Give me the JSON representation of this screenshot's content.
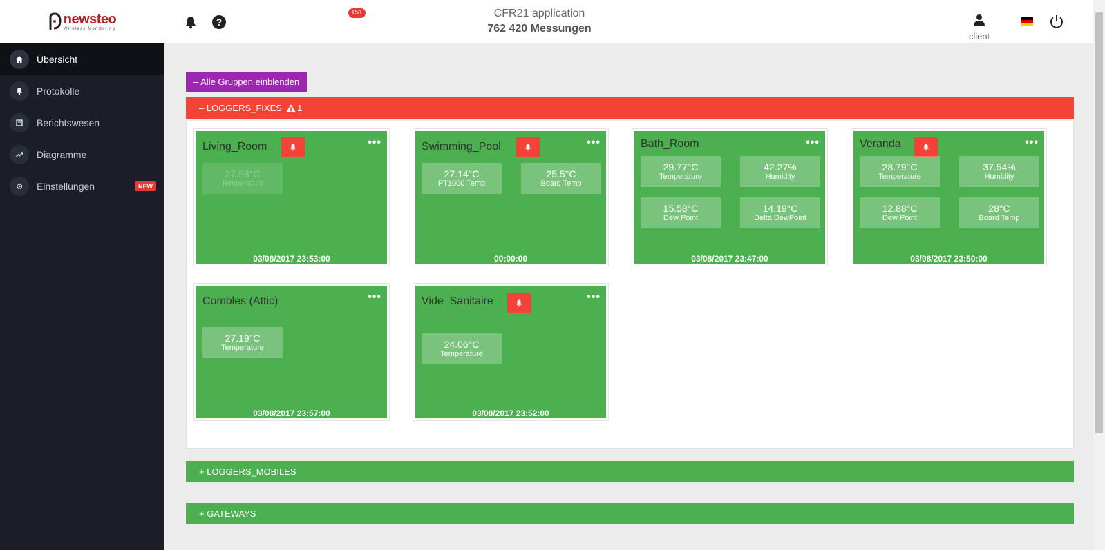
{
  "brand": {
    "name": "newsteo",
    "tagline": "Wireless Monitoring",
    "logo_color": "#b21f24"
  },
  "sidebar": {
    "items": [
      {
        "label": "Übersicht",
        "icon": "home-icon",
        "active": true
      },
      {
        "label": "Protokolle",
        "icon": "bell-icon"
      },
      {
        "label": "Berichtswesen",
        "icon": "report-icon"
      },
      {
        "label": "Diagramme",
        "icon": "chart-icon"
      },
      {
        "label": "Einstellungen",
        "icon": "gear-icon",
        "badge": "NEW"
      }
    ]
  },
  "header": {
    "notifications_count": "151",
    "app_title": "CFR21 application",
    "measurements": "762 420 Messungen",
    "user_label": "client",
    "language": "German flag"
  },
  "main": {
    "toggle_all_label": "– Alle Gruppen einblenden",
    "groups": [
      {
        "label": "– LOGGERS_FIXES",
        "warning_count": "1",
        "color": "#f44336",
        "expanded": true
      },
      {
        "label": "+ LOGGERS_MOBILES",
        "color": "#4caf50",
        "expanded": false
      },
      {
        "label": "+ GATEWAYS",
        "color": "#4caf50",
        "expanded": false
      }
    ],
    "cards": [
      {
        "name": "Living_Room",
        "alert": true,
        "time": "03/08/2017  23:53:00",
        "tiles": [
          {
            "value": "27.58°C",
            "label": "Temperature",
            "dim": true
          }
        ]
      },
      {
        "name": "Swimming_Pool",
        "alert": true,
        "time": "00:00:00",
        "tiles": [
          {
            "value": "27.14°C",
            "label": "PT1000 Temp"
          },
          {
            "value": "25.5°C",
            "label": "Board Temp"
          }
        ]
      },
      {
        "name": "Bath_Room",
        "alert": false,
        "time": "03/08/2017  23:47:00",
        "tiles": [
          {
            "value": "29.77°C",
            "label": "Temperature"
          },
          {
            "value": "42.27%",
            "label": "Humidity"
          },
          {
            "value": "15.58°C",
            "label": "Dew Point"
          },
          {
            "value": "14.19°C",
            "label": "Delta DewPoint"
          }
        ]
      },
      {
        "name": "Veranda",
        "alert": true,
        "time": "03/08/2017  23:50:00",
        "tiles": [
          {
            "value": "28.79°C",
            "label": "Temperature"
          },
          {
            "value": "37.54%",
            "label": "Humidity"
          },
          {
            "value": "12.88°C",
            "label": "Dew Point"
          },
          {
            "value": "28°C",
            "label": "Board Temp"
          }
        ]
      },
      {
        "name": "Combles (Attic)",
        "alert": false,
        "time": "03/08/2017  23:57:00",
        "tiles": [
          {
            "value": "27.19°C",
            "label": "Temperature"
          }
        ]
      },
      {
        "name": "Vide_Sanitaire",
        "alert": true,
        "time": "03/08/2017  23:52:00",
        "tiles": [
          {
            "value": "24.06°C",
            "label": "Temperature"
          }
        ]
      }
    ],
    "card_menu_glyph": "•••"
  },
  "colors": {
    "alarm": "#f44336",
    "ok": "#4caf50",
    "accent": "#9c27b0",
    "sidebar": "#1b1e26"
  }
}
